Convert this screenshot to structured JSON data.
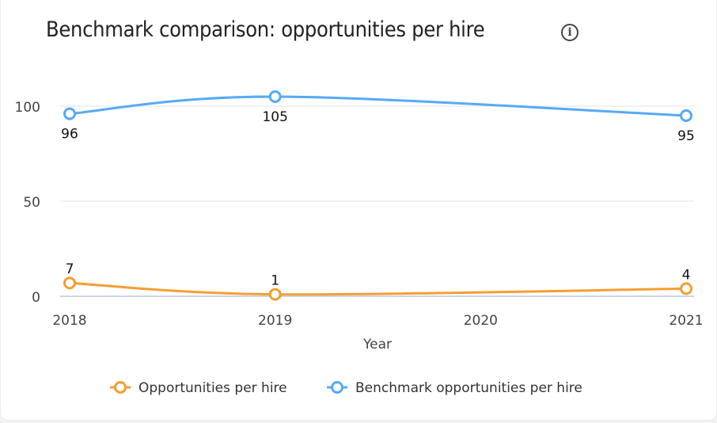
{
  "title": "Benchmark comparison: opportunities per hire",
  "info_icon": "info-circle-icon",
  "chart_data": {
    "type": "line",
    "title": "Benchmark comparison: opportunities per hire",
    "xlabel": "Year",
    "ylabel": "",
    "categories": [
      "2018",
      "2019",
      "2020",
      "2021"
    ],
    "yticks": [
      0,
      50,
      100
    ],
    "ylim": [
      0,
      110
    ],
    "grid": true,
    "legend_position": "bottom",
    "series": [
      {
        "name": "Opportunities per hire",
        "color": "#f59e32",
        "points": [
          {
            "x": "2018",
            "y": 7
          },
          {
            "x": "2019",
            "y": 1
          },
          {
            "x": "2021",
            "y": 4
          }
        ]
      },
      {
        "name": "Benchmark opportunities per hire",
        "color": "#56aaf5",
        "points": [
          {
            "x": "2018",
            "y": 96
          },
          {
            "x": "2019",
            "y": 105
          },
          {
            "x": "2021",
            "y": 95
          }
        ]
      }
    ]
  }
}
